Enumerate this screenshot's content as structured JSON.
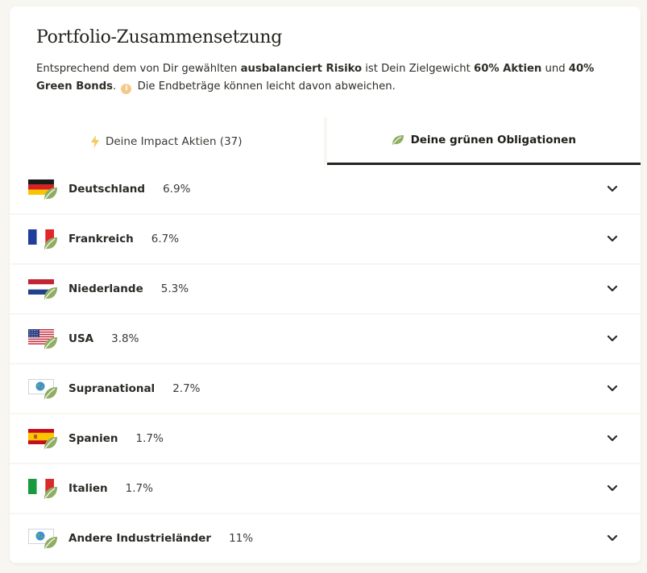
{
  "header": {
    "title": "Portfolio-Zusammensetzung",
    "desc_1": "Entsprechend dem von Dir gewählten ",
    "desc_risk": "ausbalanciert Risiko",
    "desc_2": " ist Dein Zielgewicht ",
    "desc_stocks": "60% Aktien",
    "desc_3": " und ",
    "desc_bonds": "40% Green Bonds",
    "desc_4": ".",
    "desc_5": "Die Endbeträge können leicht davon abweichen."
  },
  "tabs": {
    "stocks_label": "Deine Impact Aktien (37)",
    "bonds_label": "Deine grünen Obligationen"
  },
  "countries": [
    {
      "name": "Deutschland",
      "pct": "6.9%",
      "flag": "de"
    },
    {
      "name": "Frankreich",
      "pct": "6.7%",
      "flag": "fr"
    },
    {
      "name": "Niederlande",
      "pct": "5.3%",
      "flag": "nl"
    },
    {
      "name": "USA",
      "pct": "3.8%",
      "flag": "us"
    },
    {
      "name": "Supranational",
      "pct": "2.7%",
      "flag": "globe"
    },
    {
      "name": "Spanien",
      "pct": "1.7%",
      "flag": "es"
    },
    {
      "name": "Italien",
      "pct": "1.7%",
      "flag": "it"
    },
    {
      "name": "Andere Industrieländer",
      "pct": "11%",
      "flag": "globe"
    }
  ],
  "colors": {
    "leaf": "#8fae63",
    "bolt": "#f5c85b",
    "active_tab_underline": "#24231f",
    "info_dot": "#f5c98b"
  }
}
